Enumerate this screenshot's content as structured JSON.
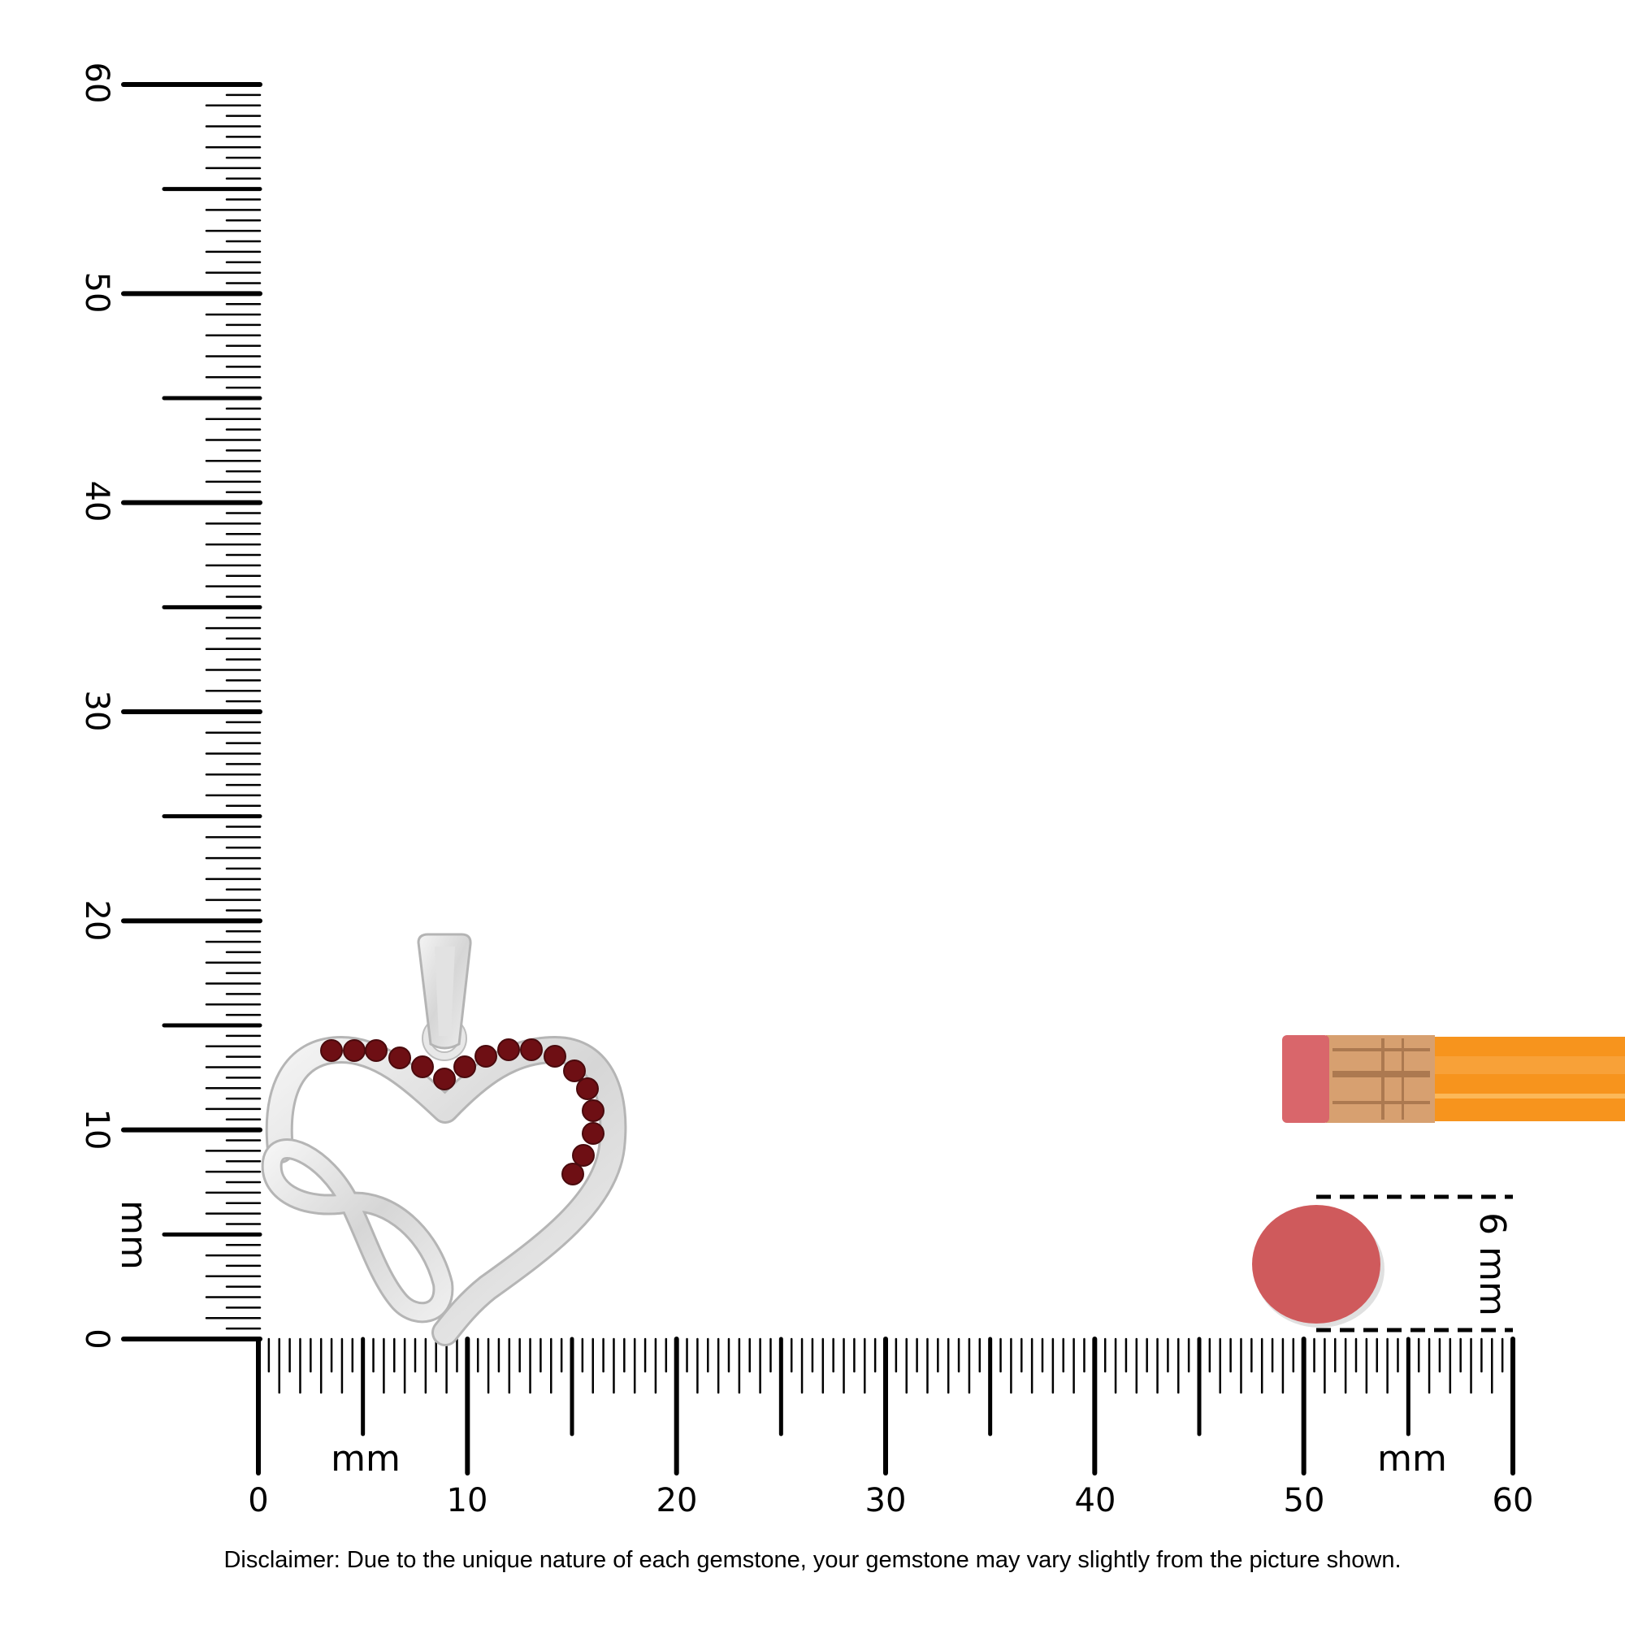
{
  "vertical_ruler": {
    "labels": [
      "0",
      "10",
      "20",
      "30",
      "40",
      "50",
      "60"
    ],
    "unit_label": "mm",
    "range_mm": [
      0,
      60
    ],
    "minor_tick_step_mm": 0.5
  },
  "horizontal_ruler": {
    "labels": [
      "0",
      "10",
      "20",
      "30",
      "40",
      "50",
      "60"
    ],
    "unit_label_left": "mm",
    "unit_label_right": "mm",
    "range_mm": [
      0,
      60
    ],
    "minor_tick_step_mm": 0.5
  },
  "product": {
    "type": "heart-infinity-pendant",
    "stone_count": 17,
    "stone_color": "#6e0f14",
    "metal_color": "#dcdcdc"
  },
  "reference_objects": {
    "pencil": {
      "eraser_color": "#d9666b",
      "ferrule_color": "#d7a070",
      "body_color": "#f7941d"
    },
    "stone": {
      "color": "#cf5a5c",
      "size_label": "6 mm"
    }
  },
  "disclaimer": "Disclaimer: Due to the unique nature of each gemstone, your gemstone may vary slightly from the picture shown."
}
